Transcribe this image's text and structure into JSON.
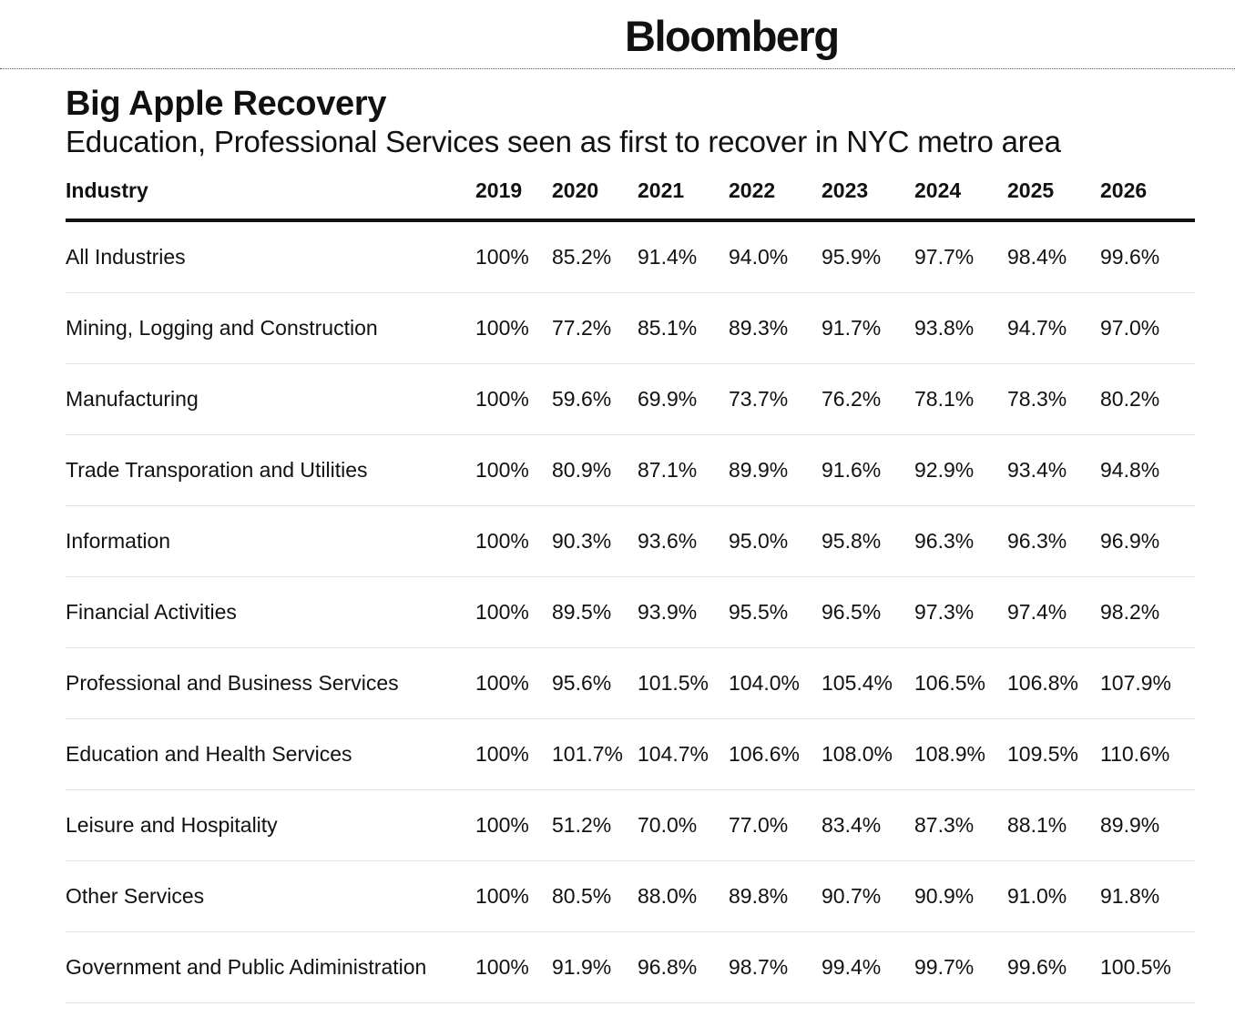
{
  "header": {
    "brand": "Bloomberg"
  },
  "chart_data": {
    "type": "table",
    "title": "Big Apple Recovery",
    "subtitle": "Education, Professional Services seen as first to recover in NYC metro area",
    "columns": [
      "Industry",
      "2019",
      "2020",
      "2021",
      "2022",
      "2023",
      "2024",
      "2025",
      "2026"
    ],
    "rows": [
      [
        "All Industries",
        "100%",
        "85.2%",
        "91.4%",
        "94.0%",
        "95.9%",
        "97.7%",
        "98.4%",
        "99.6%"
      ],
      [
        "Mining, Logging and Construction",
        "100%",
        "77.2%",
        "85.1%",
        "89.3%",
        "91.7%",
        "93.8%",
        "94.7%",
        "97.0%"
      ],
      [
        "Manufacturing",
        "100%",
        "59.6%",
        "69.9%",
        "73.7%",
        "76.2%",
        "78.1%",
        "78.3%",
        "80.2%"
      ],
      [
        "Trade Transporation and Utilities",
        "100%",
        "80.9%",
        "87.1%",
        "89.9%",
        "91.6%",
        "92.9%",
        "93.4%",
        "94.8%"
      ],
      [
        "Information",
        "100%",
        "90.3%",
        "93.6%",
        "95.0%",
        "95.8%",
        "96.3%",
        "96.3%",
        "96.9%"
      ],
      [
        "Financial Activities",
        "100%",
        "89.5%",
        "93.9%",
        "95.5%",
        "96.5%",
        "97.3%",
        "97.4%",
        "98.2%"
      ],
      [
        "Professional and Business Services",
        "100%",
        "95.6%",
        "101.5%",
        "104.0%",
        "105.4%",
        "106.5%",
        "106.8%",
        "107.9%"
      ],
      [
        "Education and Health Services",
        "100%",
        "101.7%",
        "104.7%",
        "106.6%",
        "108.0%",
        "108.9%",
        "109.5%",
        "110.6%"
      ],
      [
        "Leisure and Hospitality",
        "100%",
        "51.2%",
        "70.0%",
        "77.0%",
        "83.4%",
        "87.3%",
        "88.1%",
        "89.9%"
      ],
      [
        "Other Services",
        "100%",
        "80.5%",
        "88.0%",
        "89.8%",
        "90.7%",
        "90.9%",
        "91.0%",
        "91.8%"
      ],
      [
        "Government and Public Adiministration",
        "100%",
        "91.9%",
        "96.8%",
        "98.7%",
        "99.4%",
        "99.7%",
        "99.6%",
        "100.5%"
      ]
    ]
  }
}
